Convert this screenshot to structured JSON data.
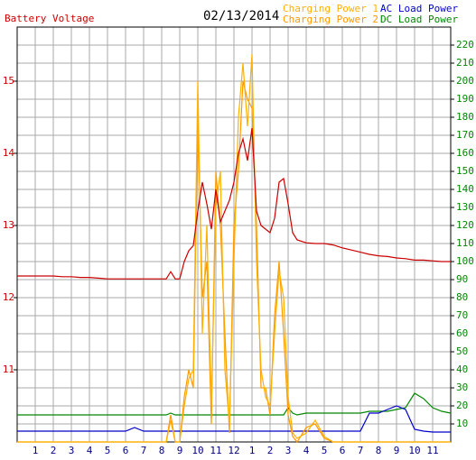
{
  "chart_data": {
    "type": "line",
    "title": "02/13/2014",
    "y_label": "Battery Voltage",
    "xlim": [
      0,
      24
    ],
    "xticks": [
      1,
      2,
      3,
      4,
      5,
      6,
      7,
      8,
      9,
      10,
      11,
      12,
      {
        "value": 13,
        "label": "1"
      },
      {
        "value": 14,
        "label": "2"
      },
      {
        "value": 15,
        "label": "3"
      },
      {
        "value": 16,
        "label": "4"
      },
      {
        "value": 17,
        "label": "5"
      },
      {
        "value": 18,
        "label": "6"
      },
      {
        "value": 19,
        "label": "7"
      },
      {
        "value": 20,
        "label": "8"
      },
      {
        "value": 21,
        "label": "9"
      },
      {
        "value": 22,
        "label": "10"
      },
      {
        "value": 23,
        "label": "11"
      }
    ],
    "ylim": [
      10,
      15.75
    ],
    "yticks": [
      11,
      12,
      13,
      14,
      15
    ],
    "y2lim": [
      0,
      230
    ],
    "y2ticks": [
      10,
      20,
      30,
      40,
      50,
      60,
      70,
      80,
      90,
      100,
      110,
      120,
      130,
      140,
      150,
      160,
      170,
      180,
      190,
      200,
      210,
      220
    ],
    "grid": true,
    "x": [
      0,
      0.5,
      1,
      1.5,
      2,
      2.5,
      3,
      3.5,
      4,
      4.5,
      5,
      5.5,
      6,
      6.5,
      7,
      7.5,
      8,
      8.25,
      8.5,
      8.75,
      9,
      9.25,
      9.5,
      9.75,
      10,
      10.25,
      10.5,
      10.75,
      11,
      11.25,
      11.5,
      11.75,
      12,
      12.25,
      12.5,
      12.75,
      13,
      13.25,
      13.5,
      13.75,
      14,
      14.25,
      14.5,
      14.75,
      15,
      15.25,
      15.5,
      16,
      16.5,
      17,
      17.5,
      18,
      18.5,
      19,
      19.5,
      20,
      20.5,
      21,
      21.5,
      22,
      22.5,
      23,
      23.5,
      24
    ],
    "series": [
      {
        "name": "Battery Voltage",
        "color": "#cc0000",
        "axis": "y",
        "values": [
          12.3,
          12.3,
          12.3,
          12.3,
          12.3,
          12.29,
          12.29,
          12.28,
          12.28,
          12.27,
          12.26,
          12.26,
          12.26,
          12.26,
          12.26,
          12.26,
          12.26,
          12.26,
          12.36,
          12.26,
          12.26,
          12.5,
          12.65,
          12.72,
          13.2,
          13.6,
          13.3,
          12.95,
          13.5,
          13.05,
          13.2,
          13.35,
          13.6,
          14.0,
          14.2,
          13.9,
          14.35,
          13.2,
          13.0,
          12.95,
          12.9,
          13.1,
          13.6,
          13.65,
          13.3,
          12.9,
          12.8,
          12.76,
          12.75,
          12.75,
          12.73,
          12.69,
          12.66,
          12.63,
          12.6,
          12.58,
          12.57,
          12.55,
          12.54,
          12.52,
          12.52,
          12.51,
          12.5,
          12.5
        ]
      },
      {
        "name": "Charging Power 1",
        "color": "#ffb000",
        "axis": "y2",
        "values": [
          0,
          0,
          0,
          0,
          0,
          0,
          0,
          0,
          0,
          0,
          0,
          0,
          0,
          0,
          0,
          0,
          0,
          0,
          12,
          0,
          0,
          20,
          35,
          40,
          200,
          60,
          120,
          20,
          130,
          150,
          40,
          10,
          100,
          180,
          210,
          175,
          215,
          100,
          40,
          25,
          20,
          60,
          95,
          80,
          25,
          5,
          2,
          5,
          12,
          3,
          0,
          0,
          0,
          0,
          0,
          0,
          0,
          0,
          0,
          0,
          0,
          0,
          0,
          0
        ]
      },
      {
        "name": "Charging Power 2",
        "color": "#ff9900",
        "axis": "y2",
        "values": [
          0,
          0,
          0,
          0,
          0,
          0,
          0,
          0,
          0,
          0,
          0,
          0,
          0,
          0,
          0,
          0,
          0,
          0,
          15,
          0,
          0,
          25,
          40,
          30,
          180,
          80,
          100,
          10,
          150,
          120,
          60,
          5,
          120,
          150,
          200,
          190,
          185,
          120,
          30,
          30,
          15,
          70,
          100,
          60,
          15,
          3,
          0,
          8,
          10,
          2,
          0,
          0,
          0,
          0,
          0,
          0,
          0,
          0,
          0,
          0,
          0,
          0,
          0,
          0
        ]
      },
      {
        "name": "AC Load Power",
        "color": "#0000cc",
        "axis": "y2",
        "values": [
          6,
          6,
          6,
          6,
          6,
          6,
          6,
          6,
          6,
          6,
          6,
          6,
          6,
          8,
          6,
          6,
          6,
          6,
          6,
          6,
          6,
          6,
          6,
          6,
          6,
          6,
          6,
          6,
          6,
          6,
          6,
          6,
          6,
          6,
          6,
          6,
          6,
          6,
          6,
          6,
          6,
          6,
          6,
          6,
          6,
          6,
          6,
          6,
          6,
          6,
          6,
          6,
          6,
          6,
          16,
          16,
          18,
          20,
          18,
          7,
          6,
          5.5,
          5.5,
          5.5
        ]
      },
      {
        "name": "DC Load Power",
        "color": "#008800",
        "axis": "y2",
        "values": [
          15,
          15,
          15,
          15,
          15,
          15,
          15,
          15,
          15,
          15,
          15,
          15,
          15,
          15,
          15,
          15,
          15,
          15,
          16,
          15,
          15,
          15,
          15,
          15,
          15,
          15,
          15,
          15,
          15,
          15,
          15,
          15,
          15,
          15,
          15,
          15,
          15,
          15,
          15,
          15,
          15,
          15,
          15,
          15,
          19,
          16,
          15,
          16,
          16,
          16,
          16,
          16,
          16,
          16,
          17,
          17,
          17,
          18,
          19,
          27,
          24,
          19,
          17,
          16
        ]
      }
    ]
  }
}
